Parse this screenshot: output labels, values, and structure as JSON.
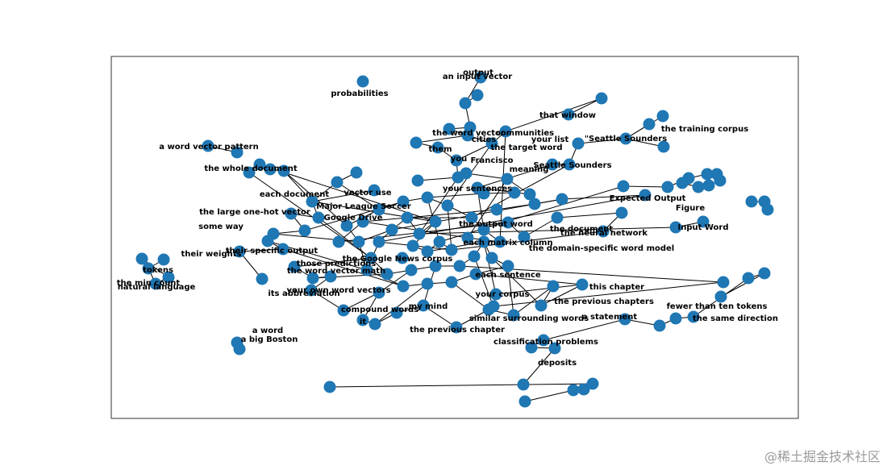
{
  "graph": {
    "node_color": "#1f77b4",
    "edge_color": "#000000",
    "labels": [
      "output",
      "an input vector",
      "probabilities",
      "that window",
      "the word vector",
      "communities",
      "cities",
      "your list",
      "the target word",
      "them",
      "you",
      "Francisco",
      "\"Seattle Sounders",
      "the training corpus",
      "a word vector pattern",
      "Seattle Sounders",
      "meaning",
      "the whole document",
      "your sentences",
      "each document",
      "vector use",
      "Major League Soccer",
      "Google Drive",
      "the large one-hot vector",
      "some way",
      "their weights",
      "their specific output",
      "those predictions",
      "the word vector math",
      "the domain-specific word model",
      "the document",
      "the neural network",
      "Expected Output",
      "Figure",
      "Input Word",
      "tokens",
      "the min count",
      "natural language",
      "your own word vectors",
      "its abbreviation",
      "my mind",
      "compound words",
      "it",
      "the previous chapter",
      "this chapter",
      "the previous chapters",
      "a statement",
      "fewer than ten tokens",
      "the same direction",
      "similar surrounding words",
      "classification problems",
      "deposits",
      "a word",
      "a big Boston",
      "the Google News corpus",
      "each matrix column",
      "the output word",
      "each sentence",
      "your corpus"
    ]
  },
  "watermark": "@稀土掘金技术社区"
}
